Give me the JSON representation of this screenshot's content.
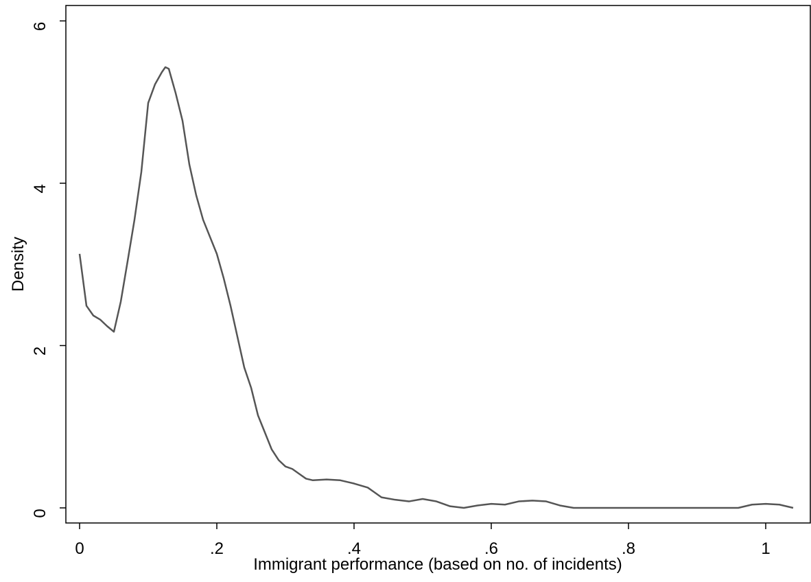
{
  "chart_data": {
    "type": "line",
    "x_label": "Immigrant performance (based on no. of incidents)",
    "y_label": "Density",
    "xlim": [
      -0.02,
      1.065
    ],
    "ylim": [
      -0.186,
      6.19
    ],
    "xticks": [
      0,
      {
        "value": 0.2,
        "label": ".2"
      },
      {
        "value": 0.4,
        "label": ".4"
      },
      {
        "value": 0.6,
        "label": ".6"
      },
      {
        "value": 0.8,
        "label": ".8"
      },
      1
    ],
    "yticks": [
      0,
      2,
      4,
      6
    ],
    "grid": false,
    "series": [
      {
        "color": "#555555",
        "x": [
          0,
          0.01,
          0.02,
          0.03,
          0.04,
          0.05,
          0.06,
          0.07,
          0.08,
          0.09,
          0.1,
          0.11,
          0.12,
          0.125,
          0.13,
          0.14,
          0.15,
          0.16,
          0.17,
          0.18,
          0.19,
          0.2,
          0.21,
          0.22,
          0.23,
          0.24,
          0.25,
          0.26,
          0.27,
          0.28,
          0.29,
          0.3,
          0.31,
          0.32,
          0.33,
          0.34,
          0.36,
          0.38,
          0.4,
          0.42,
          0.43,
          0.44,
          0.46,
          0.48,
          0.5,
          0.52,
          0.54,
          0.56,
          0.58,
          0.6,
          0.62,
          0.64,
          0.66,
          0.68,
          0.7,
          0.72,
          0.8,
          0.9,
          0.96,
          0.98,
          1.0,
          1.02,
          1.04
        ],
        "values": [
          3.13,
          2.49,
          2.37,
          2.32,
          2.24,
          2.17,
          2.54,
          3.04,
          3.55,
          4.14,
          4.99,
          5.22,
          5.37,
          5.43,
          5.41,
          5.11,
          4.77,
          4.23,
          3.85,
          3.55,
          3.34,
          3.13,
          2.83,
          2.49,
          2.11,
          1.73,
          1.48,
          1.14,
          0.93,
          0.72,
          0.59,
          0.51,
          0.48,
          0.42,
          0.36,
          0.34,
          0.35,
          0.34,
          0.3,
          0.25,
          0.19,
          0.13,
          0.1,
          0.08,
          0.11,
          0.08,
          0.02,
          0,
          0.03,
          0.05,
          0.04,
          0.08,
          0.09,
          0.08,
          0.03,
          0,
          0,
          0,
          0,
          0.04,
          0.05,
          0.04,
          0
        ]
      }
    ]
  }
}
